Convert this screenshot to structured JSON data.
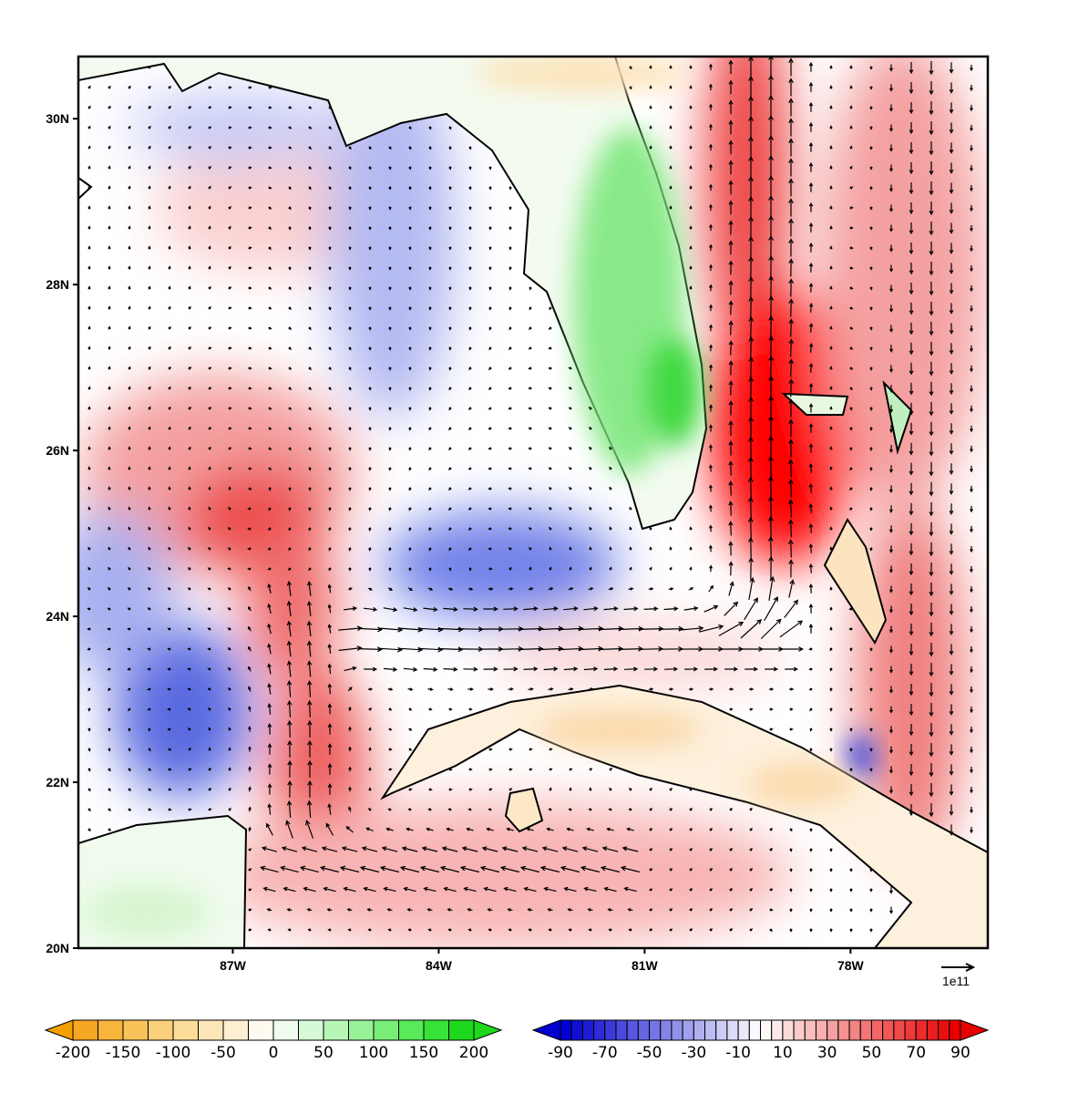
{
  "map": {
    "lat_labels": [
      "30N",
      "28N",
      "26N",
      "24N",
      "22N",
      "20N"
    ],
    "lat_values": [
      30,
      28,
      26,
      24,
      22,
      20
    ],
    "lon_labels": [
      "87W",
      "84W",
      "81W",
      "78W"
    ],
    "lon_values": [
      -87,
      -84,
      -81,
      -78
    ],
    "extent": {
      "lon": [
        -89.25,
        -76
      ],
      "lat": [
        20,
        30.75
      ]
    },
    "reference_vector_label": "1e11",
    "land_field": "orange-to-green shading over land",
    "ocean_field": "blue-to-red shading over ocean, overlaid with current vectors"
  },
  "colorbars": [
    {
      "labels": [
        "-200",
        "-150",
        "-100",
        "-50",
        "0",
        "50",
        "100",
        "150",
        "200"
      ],
      "min": -200,
      "max": 200,
      "step": 25,
      "colors": [
        "#f5a623",
        "#f8b53c",
        "#fac35a",
        "#fbd07a",
        "#fcdc99",
        "#fde7b8",
        "#feefd3",
        "#fffaf0",
        "#f0fdf0",
        "#d6fad6",
        "#b8f6b8",
        "#98f298",
        "#78ee78",
        "#58ea58",
        "#38e238",
        "#1ed81e"
      ]
    },
    {
      "labels": [
        "-90",
        "-70",
        "-50",
        "-30",
        "-10",
        "10",
        "30",
        "50",
        "70",
        "90"
      ],
      "min": -90,
      "max": 90,
      "step": 5,
      "color_low": "#0000d0",
      "color_mid": "#ffffff",
      "color_high": "#e80000"
    }
  ]
}
